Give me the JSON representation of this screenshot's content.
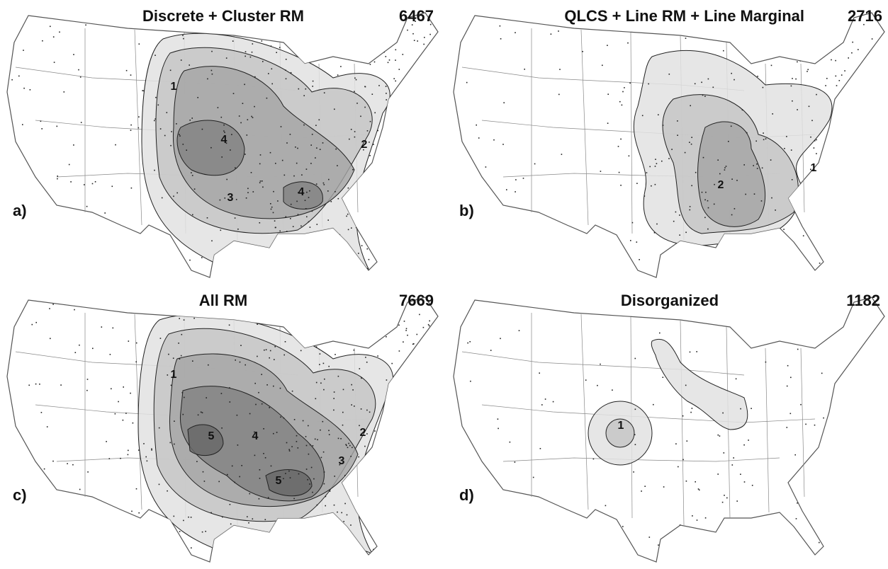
{
  "panels": [
    {
      "label": "a)",
      "title": "Discrete + Cluster RM",
      "count": 6467,
      "contour_labels": [
        "1",
        "4",
        "2",
        "3",
        "4"
      ]
    },
    {
      "label": "b)",
      "title": "QLCS + Line RM + Line Marginal",
      "count": 2716,
      "contour_labels": [
        "1",
        "2"
      ]
    },
    {
      "label": "c)",
      "title": "All RM",
      "count": 7669,
      "contour_labels": [
        "1",
        "5",
        "4",
        "2",
        "3",
        "5"
      ]
    },
    {
      "label": "d)",
      "title": "Disorganized",
      "count": 1182,
      "contour_labels": [
        "1"
      ]
    }
  ]
}
